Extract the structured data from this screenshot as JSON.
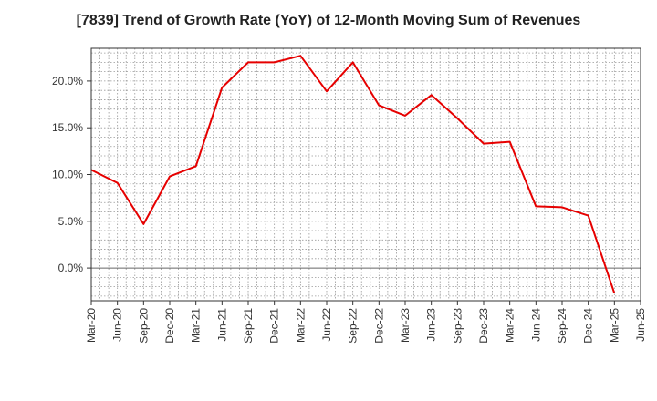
{
  "chart_data": {
    "type": "line",
    "title": "[7839]  Trend of Growth Rate (YoY) of 12-Month Moving Sum of Revenues",
    "xlabel": "",
    "ylabel": "",
    "x_tick_labels": [
      "Mar-20",
      "Jun-20",
      "Sep-20",
      "Dec-20",
      "Mar-21",
      "Jun-21",
      "Sep-21",
      "Dec-21",
      "Mar-22",
      "Jun-22",
      "Sep-22",
      "Dec-22",
      "Mar-23",
      "Jun-23",
      "Sep-23",
      "Dec-23",
      "Mar-24",
      "Jun-24",
      "Sep-24",
      "Dec-24",
      "Mar-25",
      "Jun-25"
    ],
    "y_ticks": [
      0,
      5,
      10,
      15,
      20
    ],
    "y_tick_labels": [
      "0.0%",
      "5.0%",
      "10.0%",
      "15.0%",
      "20.0%"
    ],
    "ylim": [
      -3.5,
      23.5
    ],
    "grid": true,
    "line_color": "#e60000",
    "series": [
      {
        "x": [
          "Mar-20",
          "Jun-20",
          "Sep-20",
          "Dec-20",
          "Mar-21",
          "Jun-21",
          "Sep-21",
          "Dec-21",
          "Mar-22",
          "Jun-22",
          "Sep-22",
          "Dec-22",
          "Mar-23",
          "Jun-23",
          "Sep-23",
          "Dec-23",
          "Mar-24",
          "Jun-24",
          "Sep-24",
          "Dec-24",
          "Mar-25"
        ],
        "values": [
          10.5,
          9.1,
          4.7,
          9.8,
          10.9,
          19.3,
          22.0,
          22.0,
          22.7,
          18.9,
          22.0,
          17.4,
          16.3,
          18.5,
          16.0,
          13.3,
          13.5,
          6.6,
          6.5,
          5.6,
          -2.7
        ]
      }
    ]
  }
}
